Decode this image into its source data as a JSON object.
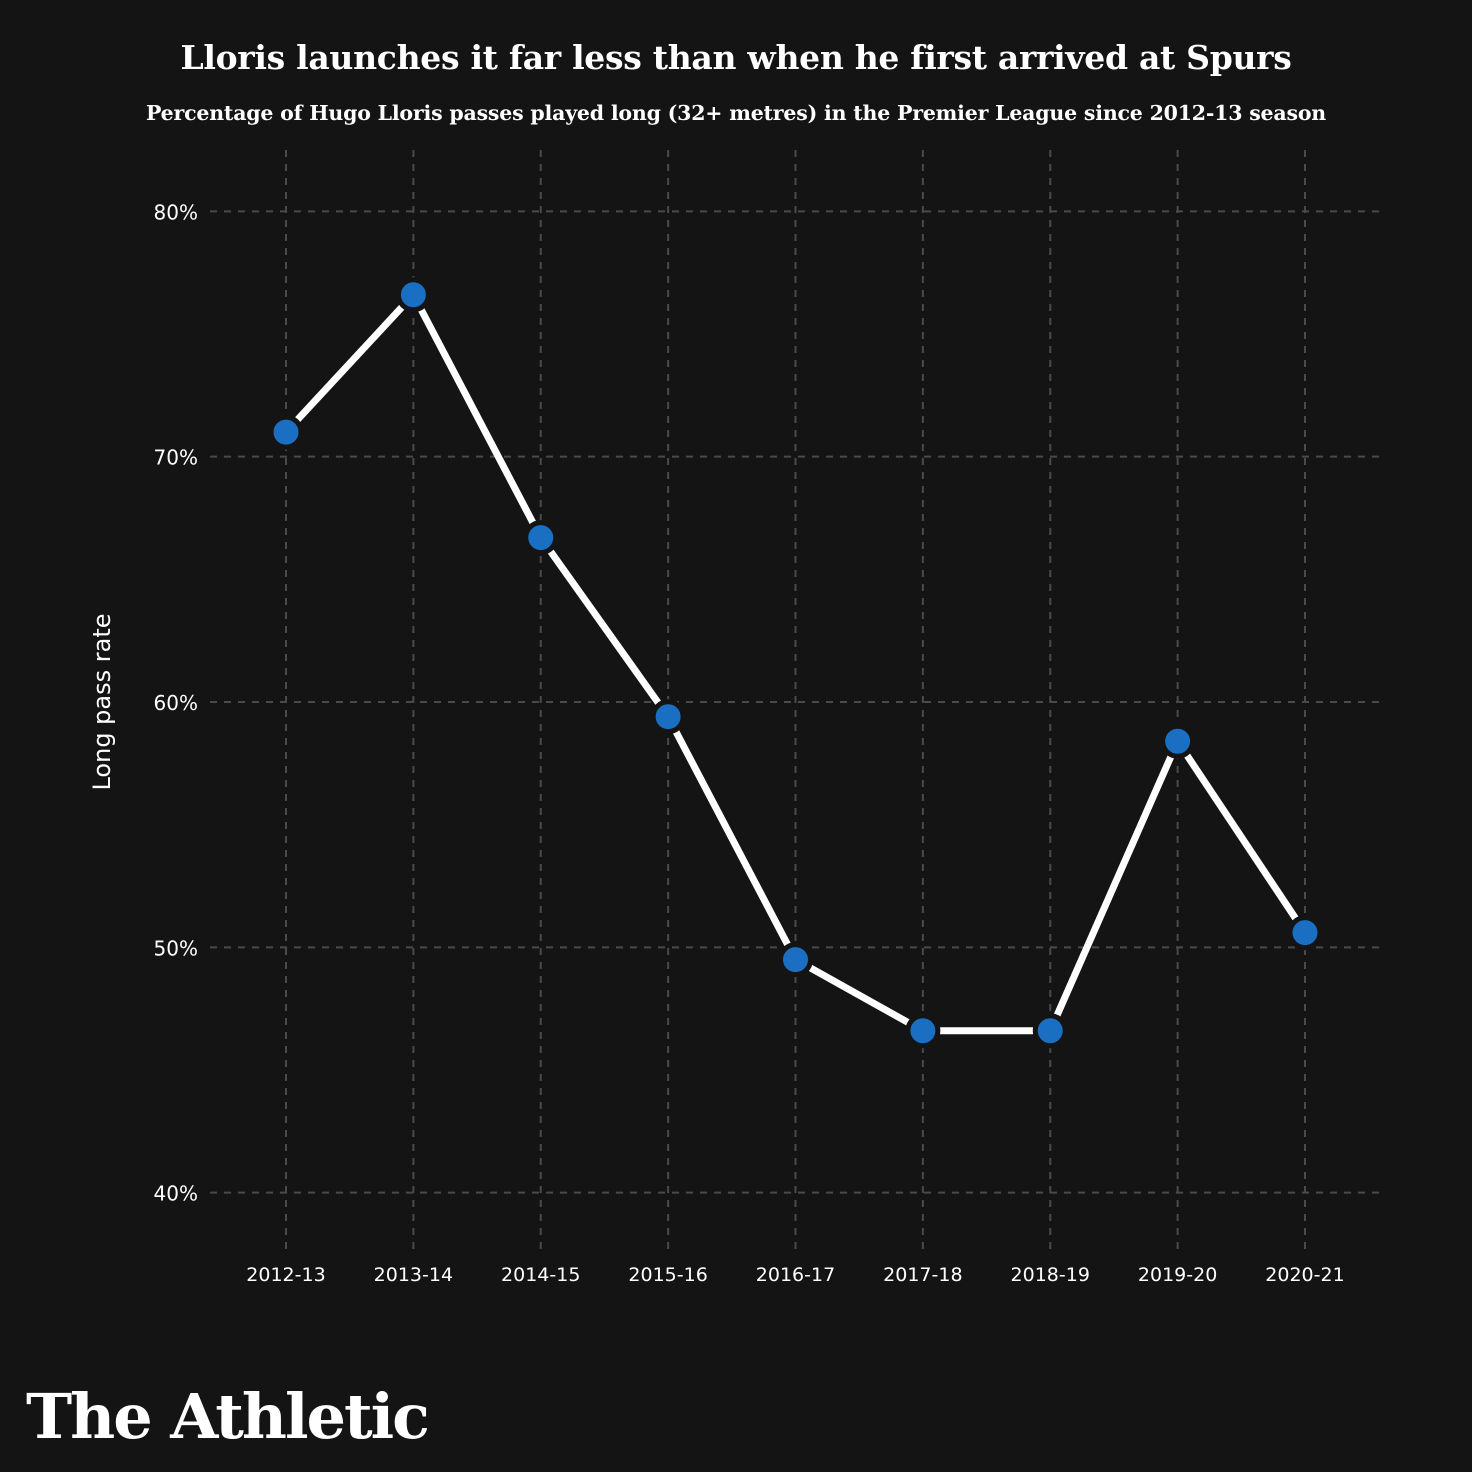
{
  "chart_data": {
    "type": "line",
    "title": "Lloris launches it far less than when he first arrived at Spurs",
    "subtitle": "Percentage of Hugo Lloris passes played long (32+ metres) in the Premier League since 2012-13 season",
    "xlabel": "",
    "ylabel": "Long pass rate",
    "categories": [
      "2012-13",
      "2013-14",
      "2014-15",
      "2015-16",
      "2016-17",
      "2017-18",
      "2018-19",
      "2019-20",
      "2020-21"
    ],
    "series": [
      {
        "values": [
          71.0,
          76.6,
          66.7,
          59.4,
          49.5,
          46.6,
          46.6,
          58.4,
          50.6
        ]
      }
    ],
    "yticks": [
      40,
      50,
      60,
      70,
      80
    ],
    "ytick_labels": [
      "40%",
      "50%",
      "60%",
      "70%",
      "80%"
    ],
    "ylim": [
      37.5,
      82.5
    ],
    "grid": true,
    "colors": {
      "background": "#141414",
      "line": "#ffffff",
      "marker": "#1a6fc2",
      "grid": "#4a4a4a",
      "text": "#ffffff"
    }
  },
  "brand": {
    "logo_text": "The Athletic"
  }
}
